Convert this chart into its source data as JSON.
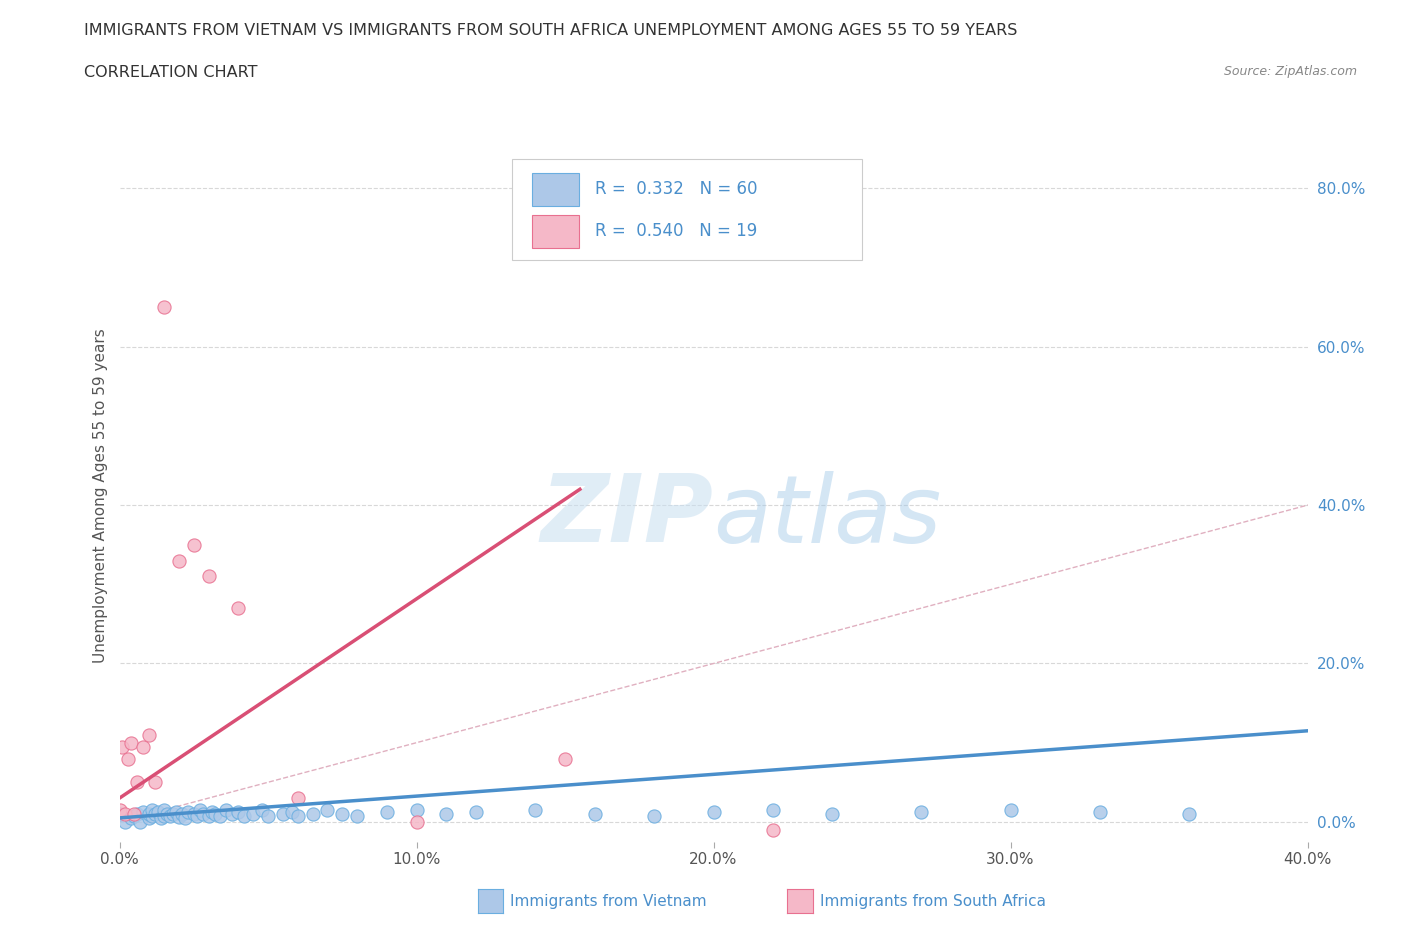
{
  "title_line1": "IMMIGRANTS FROM VIETNAM VS IMMIGRANTS FROM SOUTH AFRICA UNEMPLOYMENT AMONG AGES 55 TO 59 YEARS",
  "title_line2": "CORRELATION CHART",
  "source_text": "Source: ZipAtlas.com",
  "ylabel": "Unemployment Among Ages 55 to 59 years",
  "xmin": 0.0,
  "xmax": 0.4,
  "ymin": -0.025,
  "ymax": 0.85,
  "right_yticks": [
    0.0,
    0.2,
    0.4,
    0.6,
    0.8
  ],
  "right_yticklabels": [
    "0.0%",
    "20.0%",
    "40.0%",
    "60.0%",
    "80.0%"
  ],
  "xticks": [
    0.0,
    0.1,
    0.2,
    0.3,
    0.4
  ],
  "xticklabels": [
    "0.0%",
    "10.0%",
    "20.0%",
    "30.0%",
    "40.0%"
  ],
  "R_vietnam": 0.332,
  "N_vietnam": 60,
  "R_southafrica": 0.54,
  "N_southafrica": 19,
  "color_vietnam_fill": "#adc8e8",
  "color_vietnam_edge": "#6aaee0",
  "color_southafrica_fill": "#f5b8c8",
  "color_southafrica_edge": "#e87090",
  "color_trend_vietnam": "#4a8fcb",
  "color_trend_southafrica": "#d94f75",
  "color_diagonal": "#e0b0c0",
  "color_grid": "#d8d8d8",
  "color_title": "#333333",
  "color_rn_text": "#4a8fcb",
  "watermark_color": "#cce0f0",
  "vietnam_x": [
    0.0,
    0.002,
    0.004,
    0.005,
    0.006,
    0.007,
    0.008,
    0.01,
    0.01,
    0.011,
    0.011,
    0.012,
    0.013,
    0.014,
    0.015,
    0.015,
    0.016,
    0.017,
    0.018,
    0.019,
    0.02,
    0.021,
    0.022,
    0.023,
    0.025,
    0.026,
    0.027,
    0.028,
    0.03,
    0.031,
    0.032,
    0.034,
    0.036,
    0.038,
    0.04,
    0.042,
    0.045,
    0.048,
    0.05,
    0.055,
    0.058,
    0.06,
    0.065,
    0.07,
    0.075,
    0.08,
    0.09,
    0.1,
    0.11,
    0.12,
    0.14,
    0.16,
    0.18,
    0.2,
    0.22,
    0.24,
    0.27,
    0.3,
    0.33,
    0.36
  ],
  "vietnam_y": [
    0.01,
    0.0,
    0.005,
    0.008,
    0.01,
    0.0,
    0.012,
    0.005,
    0.01,
    0.008,
    0.015,
    0.01,
    0.012,
    0.005,
    0.008,
    0.015,
    0.01,
    0.008,
    0.01,
    0.012,
    0.006,
    0.01,
    0.005,
    0.012,
    0.01,
    0.008,
    0.015,
    0.01,
    0.008,
    0.012,
    0.01,
    0.008,
    0.015,
    0.01,
    0.012,
    0.008,
    0.01,
    0.015,
    0.008,
    0.01,
    0.012,
    0.008,
    0.01,
    0.015,
    0.01,
    0.008,
    0.012,
    0.015,
    0.01,
    0.012,
    0.015,
    0.01,
    0.008,
    0.012,
    0.015,
    0.01,
    0.012,
    0.015,
    0.012,
    0.01
  ],
  "southafrica_x": [
    0.0,
    0.001,
    0.002,
    0.003,
    0.004,
    0.005,
    0.006,
    0.008,
    0.01,
    0.012,
    0.015,
    0.02,
    0.025,
    0.03,
    0.04,
    0.06,
    0.1,
    0.15,
    0.22
  ],
  "southafrica_y": [
    0.015,
    0.095,
    0.01,
    0.08,
    0.1,
    0.01,
    0.05,
    0.095,
    0.11,
    0.05,
    0.65,
    0.33,
    0.35,
    0.31,
    0.27,
    0.03,
    0.0,
    0.08,
    -0.01
  ],
  "vietnam_trend_x0": 0.0,
  "vietnam_trend_x1": 0.4,
  "vietnam_trend_y0": 0.005,
  "vietnam_trend_y1": 0.115,
  "southafrica_trend_x0": 0.0,
  "southafrica_trend_x1": 0.155,
  "southafrica_trend_y0": 0.03,
  "southafrica_trend_y1": 0.42
}
